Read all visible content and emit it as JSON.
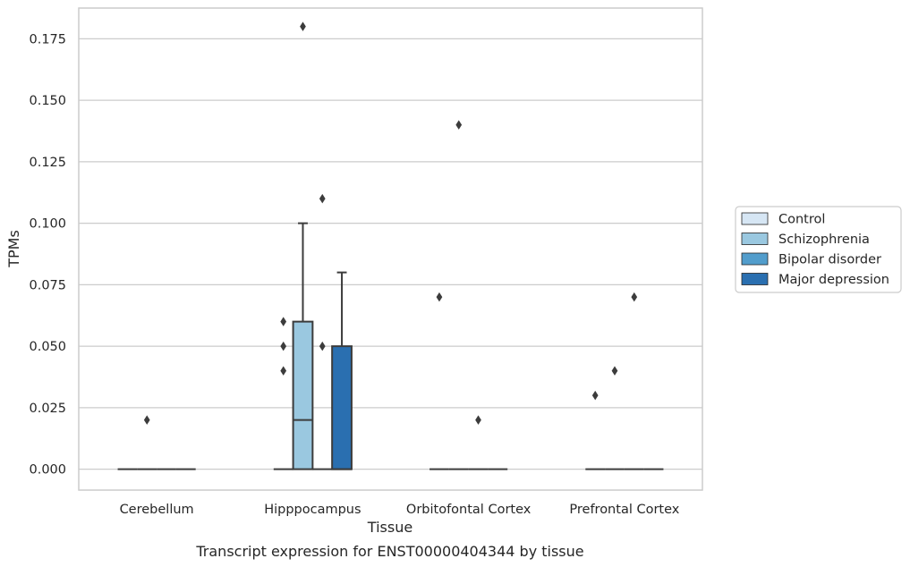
{
  "chart_data": {
    "type": "box",
    "xlabel": "Tissue",
    "ylabel": "TPMs",
    "caption": "Transcript expression for ENST00000404344 by tissue",
    "categories": [
      "Cerebellum",
      "Hipppocampus",
      "Orbitofontal Cortex",
      "Prefrontal Cortex"
    ],
    "ylim": [
      -0.0085,
      0.1875
    ],
    "yticks": [
      "0.000",
      "0.025",
      "0.050",
      "0.075",
      "0.100",
      "0.125",
      "0.150",
      "0.175"
    ],
    "ytick_values": [
      0,
      0.025,
      0.05,
      0.075,
      0.1,
      0.125,
      0.15,
      0.175
    ],
    "grid": true,
    "legend_position": "right",
    "legend": [
      "Control",
      "Schizophrenia",
      "Bipolar disorder",
      "Major depression"
    ],
    "series_colors": [
      "#d6e6f4",
      "#9ac8e0",
      "#529dcc",
      "#2a6fb0"
    ],
    "boxes": [
      {
        "category": "Cerebellum",
        "group": "Control",
        "q1": 0,
        "median": 0,
        "q3": 0,
        "whisker_low": 0,
        "whisker_high": 0,
        "outliers": []
      },
      {
        "category": "Cerebellum",
        "group": "Schizophrenia",
        "q1": 0,
        "median": 0,
        "q3": 0,
        "whisker_low": 0,
        "whisker_high": 0,
        "outliers": [
          0.02
        ]
      },
      {
        "category": "Cerebellum",
        "group": "Bipolar disorder",
        "q1": 0,
        "median": 0,
        "q3": 0,
        "whisker_low": 0,
        "whisker_high": 0,
        "outliers": []
      },
      {
        "category": "Cerebellum",
        "group": "Major depression",
        "q1": 0,
        "median": 0,
        "q3": 0,
        "whisker_low": 0,
        "whisker_high": 0,
        "outliers": []
      },
      {
        "category": "Hipppocampus",
        "group": "Control",
        "q1": 0,
        "median": 0,
        "q3": 0,
        "whisker_low": 0,
        "whisker_high": 0,
        "outliers": [
          0.04,
          0.05,
          0.06
        ]
      },
      {
        "category": "Hipppocampus",
        "group": "Schizophrenia",
        "q1": 0,
        "median": 0.02,
        "q3": 0.06,
        "whisker_low": 0,
        "whisker_high": 0.1,
        "outliers": [
          0.18
        ]
      },
      {
        "category": "Hipppocampus",
        "group": "Bipolar disorder",
        "q1": 0,
        "median": 0,
        "q3": 0,
        "whisker_low": 0,
        "whisker_high": 0,
        "outliers": [
          0.05,
          0.11
        ]
      },
      {
        "category": "Hipppocampus",
        "group": "Major depression",
        "q1": 0,
        "median": 0,
        "q3": 0.05,
        "whisker_low": 0,
        "whisker_high": 0.08,
        "outliers": []
      },
      {
        "category": "Orbitofontal Cortex",
        "group": "Control",
        "q1": 0,
        "median": 0,
        "q3": 0,
        "whisker_low": 0,
        "whisker_high": 0,
        "outliers": [
          0.07
        ]
      },
      {
        "category": "Orbitofontal Cortex",
        "group": "Schizophrenia",
        "q1": 0,
        "median": 0,
        "q3": 0,
        "whisker_low": 0,
        "whisker_high": 0,
        "outliers": [
          0.14
        ]
      },
      {
        "category": "Orbitofontal Cortex",
        "group": "Bipolar disorder",
        "q1": 0,
        "median": 0,
        "q3": 0,
        "whisker_low": 0,
        "whisker_high": 0,
        "outliers": [
          0.02
        ]
      },
      {
        "category": "Orbitofontal Cortex",
        "group": "Major depression",
        "q1": 0,
        "median": 0,
        "q3": 0,
        "whisker_low": 0,
        "whisker_high": 0,
        "outliers": []
      },
      {
        "category": "Prefrontal Cortex",
        "group": "Control",
        "q1": 0,
        "median": 0,
        "q3": 0,
        "whisker_low": 0,
        "whisker_high": 0,
        "outliers": [
          0.03
        ]
      },
      {
        "category": "Prefrontal Cortex",
        "group": "Schizophrenia",
        "q1": 0,
        "median": 0,
        "q3": 0,
        "whisker_low": 0,
        "whisker_high": 0,
        "outliers": [
          0.04
        ]
      },
      {
        "category": "Prefrontal Cortex",
        "group": "Bipolar disorder",
        "q1": 0,
        "median": 0,
        "q3": 0,
        "whisker_low": 0,
        "whisker_high": 0,
        "outliers": [
          0.07
        ]
      },
      {
        "category": "Prefrontal Cortex",
        "group": "Major depression",
        "q1": 0,
        "median": 0,
        "q3": 0,
        "whisker_low": 0,
        "whisker_high": 0,
        "outliers": []
      }
    ]
  }
}
